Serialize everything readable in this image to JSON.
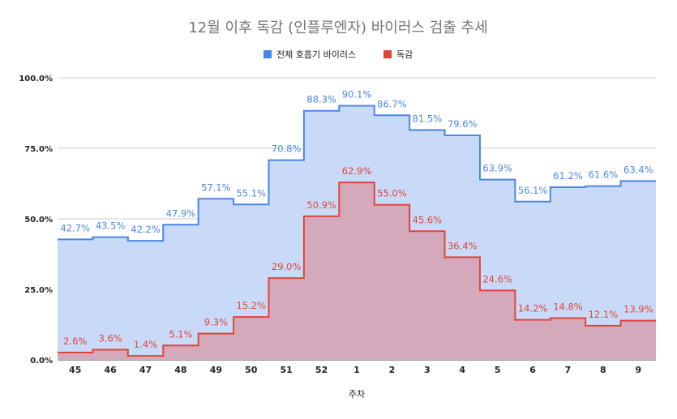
{
  "chart_data": {
    "type": "area",
    "step": true,
    "title": "12월 이후 독감 (인플루엔자) 바이러스 검출 추세",
    "xlabel": "주차",
    "ylabel": "",
    "categories": [
      "45",
      "46",
      "47",
      "48",
      "49",
      "50",
      "51",
      "52",
      "1",
      "2",
      "3",
      "4",
      "5",
      "6",
      "7",
      "8",
      "9"
    ],
    "ylim": [
      0,
      100
    ],
    "yticks": [
      "0.0%",
      "25.0%",
      "50.0%",
      "75.0%",
      "100.0%"
    ],
    "ytick_values": [
      0,
      25,
      50,
      75,
      100
    ],
    "grid": true,
    "legend_position": "top",
    "series": [
      {
        "name": "전체 호흡기 바이러스",
        "color": "#4a86e8",
        "fill": "#c9daf8",
        "values": [
          42.7,
          43.5,
          42.2,
          47.9,
          57.1,
          55.1,
          70.8,
          88.3,
          90.1,
          86.7,
          81.5,
          79.6,
          63.9,
          56.1,
          61.2,
          61.6,
          63.4
        ],
        "labels": [
          "42.7%",
          "43.5%",
          "42.2%",
          "47.9%",
          "57.1%",
          "55.1%",
          "70.8%",
          "88.3%",
          "90.1%",
          "86.7%",
          "81.5%",
          "79.6%",
          "63.9%",
          "56.1%",
          "61.2%",
          "61.6%",
          "63.4%"
        ]
      },
      {
        "name": "독감",
        "color": "#e0453a",
        "fill": "#d5a6b8",
        "values": [
          2.6,
          3.6,
          1.4,
          5.1,
          9.3,
          15.2,
          29.0,
          50.9,
          62.9,
          55.0,
          45.6,
          36.4,
          24.6,
          14.2,
          14.8,
          12.1,
          13.9
        ],
        "labels": [
          "2.6%",
          "3.6%",
          "1.4%",
          "5.1%",
          "9.3%",
          "15.2%",
          "29.0%",
          "50.9%",
          "62.9%",
          "55.0%",
          "45.6%",
          "36.4%",
          "24.6%",
          "14.2%",
          "14.8%",
          "12.1%",
          "13.9%"
        ]
      }
    ]
  }
}
